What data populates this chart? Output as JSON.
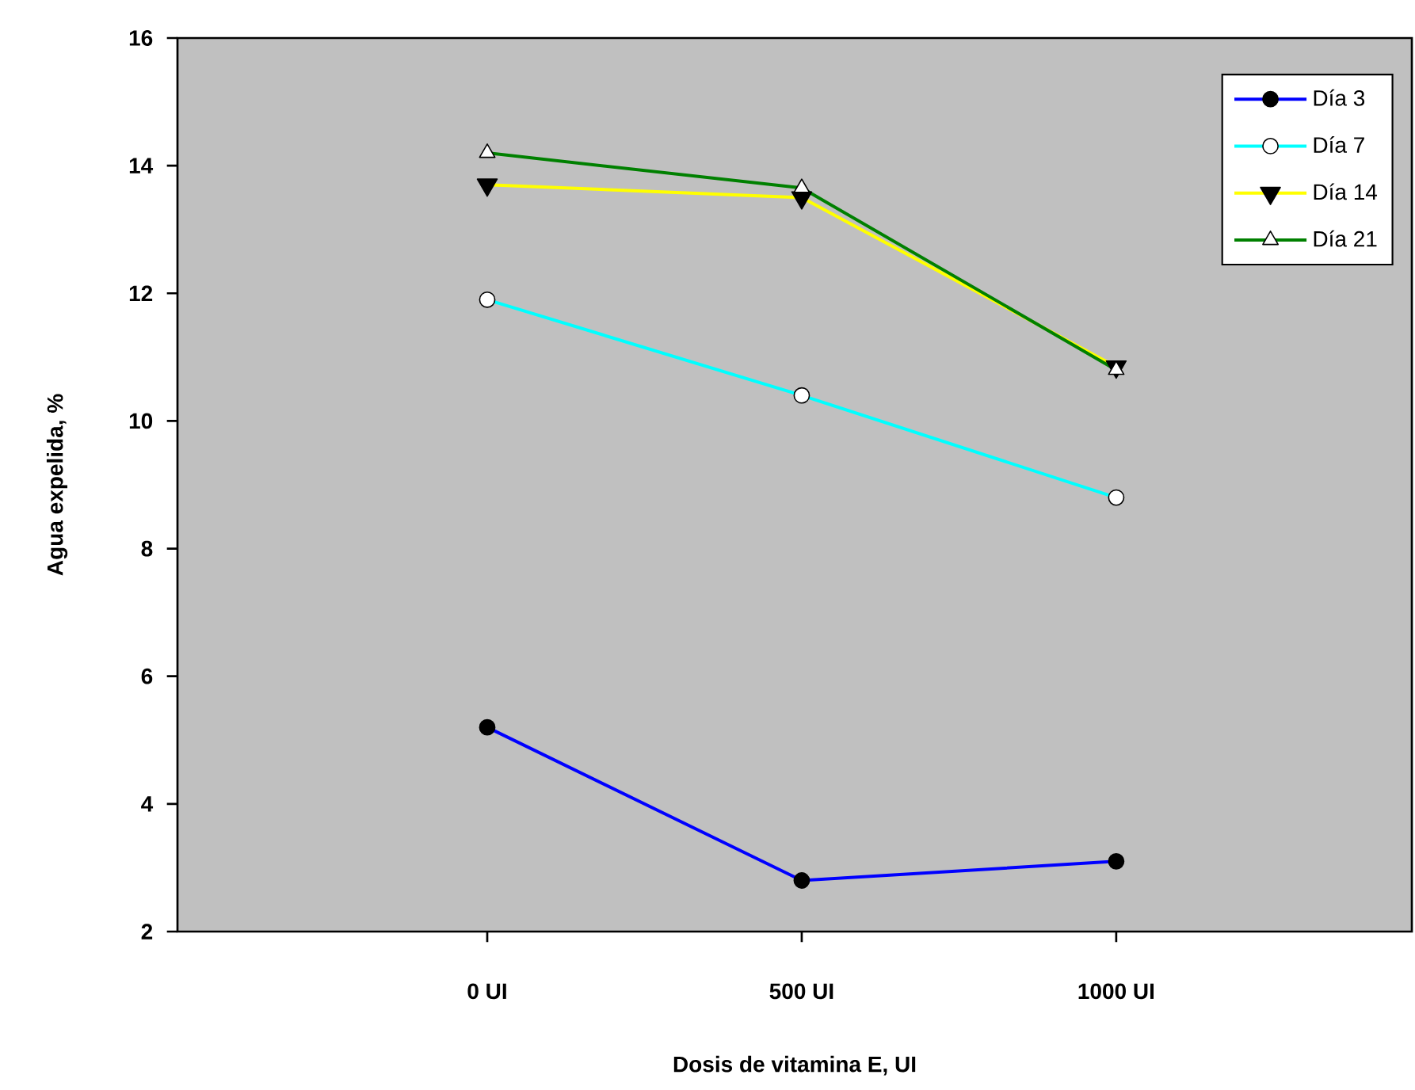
{
  "chart_data": {
    "type": "line",
    "xlabel": "Dosis de vitamina E, UI",
    "ylabel": "Agua expelida, %",
    "categories": [
      "0 UI",
      "500 UI",
      "1000 UI"
    ],
    "ylim": [
      2,
      16
    ],
    "yticks": [
      2,
      4,
      6,
      8,
      10,
      12,
      14,
      16
    ],
    "legend": "top right",
    "series": [
      {
        "name": "Día 3",
        "color": "#0000ff",
        "marker": "circle",
        "values": [
          5.2,
          2.8,
          3.1
        ]
      },
      {
        "name": "Día 7",
        "color": "#00ffff",
        "marker": "circle",
        "values": [
          11.9,
          10.4,
          8.8
        ]
      },
      {
        "name": "Día 14",
        "color": "#ffff00",
        "marker": "triangle_down",
        "values": [
          13.7,
          13.5,
          10.85
        ]
      },
      {
        "name": "Día 21",
        "color": "#008000",
        "marker": "triangle",
        "values": [
          14.2,
          13.65,
          10.8
        ]
      }
    ]
  }
}
